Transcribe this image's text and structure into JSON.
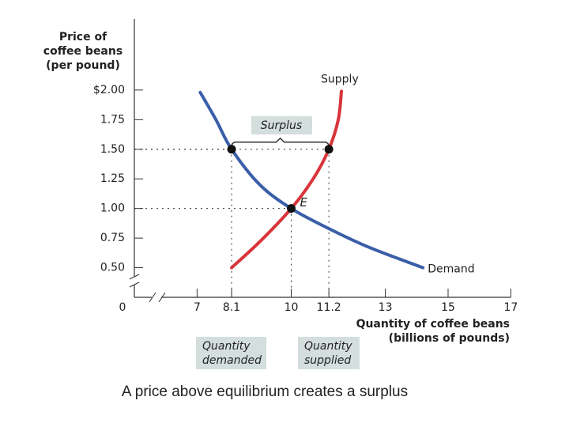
{
  "chart_data": {
    "type": "supply_demand",
    "y_title": [
      "Price of",
      "coffee beans",
      "(per pound)"
    ],
    "x_title": [
      "Quantity of coffee beans",
      "(billions of pounds)"
    ],
    "origin_label": "0",
    "xlim": [
      5,
      17
    ],
    "ylim": [
      0.25,
      2.6
    ],
    "xticks": [
      7,
      8.1,
      10,
      11.2,
      13,
      15,
      17
    ],
    "yticks": [
      {
        "value": 2,
        "label": "$2.00"
      },
      1.75,
      {
        "value": 1.5,
        "label": "1.50"
      },
      1.25,
      {
        "value": 1,
        "label": "1.00"
      },
      0.75,
      {
        "value": 0.5,
        "label": "0.50"
      }
    ],
    "series": [
      {
        "name": "Supply",
        "color": "#d9343a",
        "x": [
          8.1,
          9,
          10,
          10.7,
          11.2,
          11.5,
          11.6
        ],
        "values": [
          0.5,
          0.72,
          1.0,
          1.25,
          1.5,
          1.75,
          1.99
        ]
      },
      {
        "name": "Demand",
        "color": "#3a5ea8",
        "x": [
          7.1,
          7.6,
          8.1,
          9,
          10,
          11.2,
          12.5,
          14.2
        ],
        "values": [
          1.98,
          1.75,
          1.5,
          1.2,
          1.0,
          0.83,
          0.67,
          0.5
        ]
      }
    ],
    "points": [
      {
        "name": "E",
        "x": 10,
        "value": 1
      },
      {
        "x": 8.1,
        "value": 1.5
      },
      {
        "x": 11.2,
        "value": 1.5
      }
    ],
    "surplus_label": "Surplus",
    "quantity_demanded_label": [
      "Quantity",
      "demanded"
    ],
    "quantity_supplied_label": [
      "Quantity",
      "supplied"
    ],
    "caption": "A price above equilibrium creates a surplus"
  }
}
